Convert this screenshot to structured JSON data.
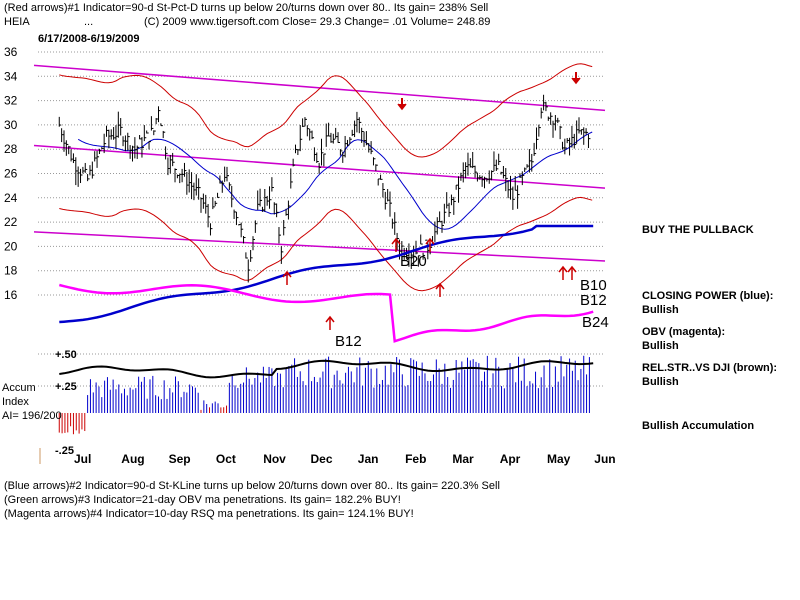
{
  "header": {
    "line1": "(Red arrows)#1 Indicator=90-d St-Pct-D turns up below 20/turns down over 80..  Its gain= 238% Sell",
    "ticker": "HEIA",
    "ticker_suffix": "...",
    "line2": "(C) 2009 www.tigersoft.com     Close=  29.3  Change= .01 Volume= 248.89",
    "date_range": "6/17/2008-6/19/2009"
  },
  "annotations": {
    "buy_the_pullback": "BUY THE PULLBACK",
    "closing_power_label": "CLOSING POWER (blue):",
    "closing_power_value": "Bullish",
    "obv_label": "OBV (magenta):",
    "obv_value": "Bullish",
    "relstr_label": "REL.STR..VS DJI (brown):",
    "relstr_value": "Bullish",
    "accumulation": "Bullish Accumulation",
    "accum_label_1": "Accum",
    "accum_label_2": "Index",
    "ai_value": "AI= 196/200"
  },
  "footer": {
    "line1": "(Blue arrows)#2 Indicator=90-d St-KLine turns up below 20/turns down over 80..  Its gain= 220.3% Sell",
    "line2": "(Green arrows)#3 Indicator=21-day OBV ma penetrations. Its gain= 182.2% BUY!",
    "line3": "(Magenta arrows)#4 Indicator=10-day RSQ ma penetrations. Its gain= 124.1% BUY!"
  },
  "colors": {
    "price": "#000000",
    "bollinger": "#cc0000",
    "ma_blue": "#0000cc",
    "closing_power": "#0000cc",
    "obv": "#ff00ff",
    "trend_lines": "#cc00cc",
    "relstr": "#000000",
    "accum_bars": "#0000cc",
    "accum_negative": "#cc0000",
    "sell_arrow": "#cc0000",
    "buy_arrow": "#cc0000",
    "grid": "#999999"
  },
  "chart_data": {
    "type": "line",
    "x_tick_labels": [
      "Jul",
      "Aug",
      "Sep",
      "Oct",
      "Nov",
      "Dec",
      "Jan",
      "Feb",
      "Mar",
      "Apr",
      "May",
      "Jun"
    ],
    "y_tick_labels": [
      "36",
      "34",
      "32",
      "30",
      "28",
      "26",
      "24",
      "22",
      "20",
      "18",
      "16"
    ],
    "ylim": [
      16,
      36
    ],
    "accum_tick_labels": [
      "+.50",
      "+.25",
      "-.25"
    ],
    "grid": true,
    "price_series": {
      "name": "HEIA",
      "months": [
        0,
        0.3,
        0.6,
        1,
        1.3,
        1.6,
        2,
        2.1,
        2.3,
        2.6,
        3,
        3.2,
        3.5,
        3.8,
        4,
        4.2,
        4.5,
        4.7,
        5,
        5.2,
        5.5,
        5.7,
        6,
        6.3,
        6.6,
        7,
        7.2,
        7.5,
        7.8,
        8,
        8.3,
        8.6,
        9,
        9.3,
        9.6,
        10,
        10.2,
        10.5,
        10.7,
        11,
        11.2
      ],
      "values": [
        30,
        27,
        25.5,
        29,
        29.5,
        28,
        29.5,
        31.5,
        27,
        26,
        24,
        22,
        26,
        22,
        18.5,
        23,
        24.5,
        20,
        27.5,
        30.5,
        27,
        29,
        28,
        30.5,
        27.5,
        23,
        20,
        19.5,
        20,
        21.5,
        23.5,
        26.5,
        25.8,
        26.5,
        24,
        27,
        31.5,
        30.5,
        28,
        29.3,
        29.3
      ]
    },
    "arrow_labels": [
      "B20",
      "B12",
      "B10",
      "B12",
      "B24"
    ]
  }
}
